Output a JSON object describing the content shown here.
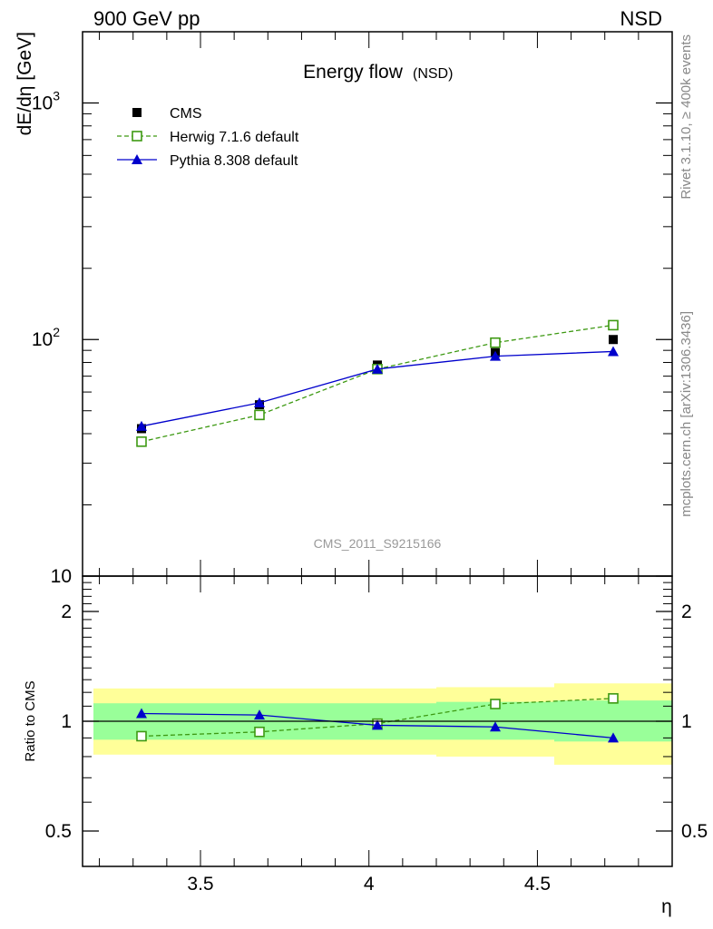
{
  "header": {
    "left": "900 GeV pp",
    "right": "NSD"
  },
  "side_labels": {
    "rivet": "Rivet 3.1.10, ≥ 400k events",
    "source": "mcplots.cern.ch [arXiv:1306.3436]"
  },
  "chart_data": [
    {
      "type": "line",
      "title": "Energy flow",
      "title_suffix": "(NSD)",
      "ylabel": "dE/dη [GeV]",
      "xlabel": "",
      "yscale": "log",
      "ylim": [
        10,
        2000
      ],
      "xlim": [
        3.15,
        4.9
      ],
      "watermark": "CMS_2011_S9215166",
      "y_ticks": [
        {
          "value": 10,
          "label": "10"
        },
        {
          "value": 100,
          "label": "10",
          "sup": "2"
        },
        {
          "value": 1000,
          "label": "10",
          "sup": "3"
        }
      ],
      "legend_position": "top-left",
      "x": [
        3.325,
        3.675,
        4.025,
        4.375,
        4.725
      ],
      "series": [
        {
          "name": "CMS",
          "color": "#000000",
          "marker": "square-filled",
          "line": "none",
          "values": [
            42,
            53,
            78,
            88,
            100
          ]
        },
        {
          "name": "Herwig 7.1.6 default",
          "color": "#3d9912",
          "marker": "square-open",
          "line": "dashed",
          "values": [
            37,
            48,
            75,
            97,
            115
          ]
        },
        {
          "name": "Pythia 8.308 default",
          "color": "#0000cc",
          "marker": "triangle-filled",
          "line": "solid",
          "values": [
            43,
            54,
            75,
            85,
            89
          ]
        }
      ]
    },
    {
      "type": "line",
      "ylabel": "Ratio to CMS",
      "xlabel": "η",
      "yscale": "log",
      "ylim": [
        0.4,
        2.5
      ],
      "xlim": [
        3.15,
        4.9
      ],
      "x_ticks": [
        {
          "value": 3.5,
          "label": "3.5"
        },
        {
          "value": 4,
          "label": "4"
        },
        {
          "value": 4.5,
          "label": "4.5"
        }
      ],
      "y_ticks": [
        {
          "value": 0.5,
          "label": "0.5"
        },
        {
          "value": 1,
          "label": "1"
        },
        {
          "value": 2,
          "label": "2"
        }
      ],
      "bands": [
        {
          "x0": 3.15,
          "x1": 3.5,
          "stat_lo": 0.89,
          "stat_hi": 1.12,
          "tot_lo": 0.81,
          "tot_hi": 1.23
        },
        {
          "x0": 3.5,
          "x1": 3.85,
          "stat_lo": 0.89,
          "stat_hi": 1.12,
          "tot_lo": 0.81,
          "tot_hi": 1.23
        },
        {
          "x0": 3.85,
          "x1": 4.2,
          "stat_lo": 0.89,
          "stat_hi": 1.12,
          "tot_lo": 0.81,
          "tot_hi": 1.23
        },
        {
          "x0": 4.2,
          "x1": 4.55,
          "stat_lo": 0.89,
          "stat_hi": 1.13,
          "tot_lo": 0.8,
          "tot_hi": 1.24
        },
        {
          "x0": 4.55,
          "x1": 4.9,
          "stat_lo": 0.88,
          "stat_hi": 1.14,
          "tot_lo": 0.76,
          "tot_hi": 1.27
        }
      ],
      "band_colors": {
        "stat": "#99ff99",
        "total": "#ffff99"
      },
      "x": [
        3.325,
        3.675,
        4.025,
        4.375,
        4.725
      ],
      "series": [
        {
          "name": "Herwig 7.1.6 default",
          "color": "#3d9912",
          "marker": "square-open",
          "line": "dashed",
          "values": [
            0.91,
            0.935,
            0.985,
            1.115,
            1.155
          ]
        },
        {
          "name": "Pythia 8.308 default",
          "color": "#0000cc",
          "marker": "triangle-filled",
          "line": "solid",
          "values": [
            1.05,
            1.04,
            0.975,
            0.965,
            0.9
          ]
        }
      ]
    }
  ]
}
